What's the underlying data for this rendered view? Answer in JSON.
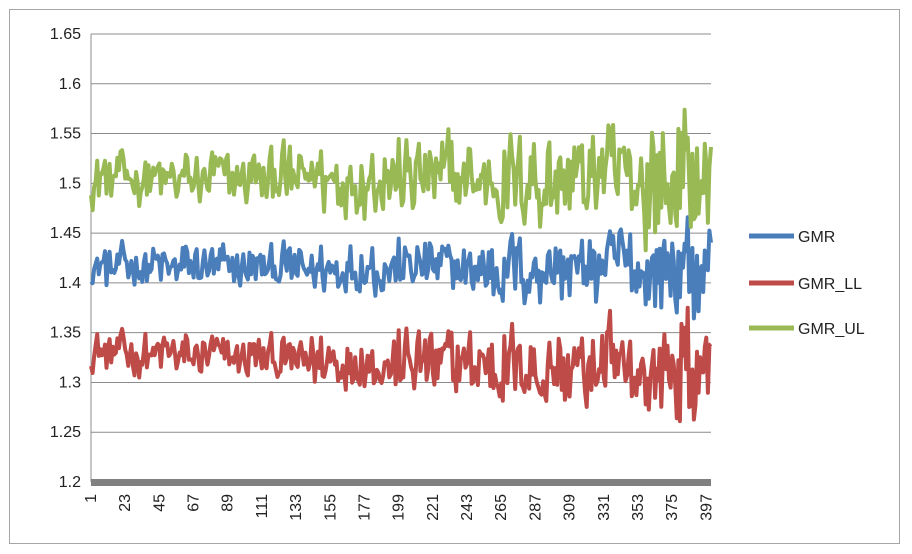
{
  "chart_data": {
    "type": "line",
    "title": "",
    "xlabel": "",
    "ylabel": "",
    "ylim": [
      1.2,
      1.65
    ],
    "yticks": [
      "1.2",
      "1.25",
      "1.3",
      "1.35",
      "1.4",
      "1.45",
      "1.5",
      "1.55",
      "1.6",
      "1.65"
    ],
    "xticks": [
      "1",
      "23",
      "45",
      "67",
      "89",
      "111",
      "133",
      "155",
      "177",
      "199",
      "221",
      "243",
      "265",
      "287",
      "309",
      "331",
      "353",
      "375",
      "397"
    ],
    "x_range": [
      1,
      400
    ],
    "grid": "horizontal",
    "legend_position": "right",
    "colors": {
      "GMR": "#4a7ebb",
      "GMR_LL": "#be4b48",
      "GMR_UL": "#98b954"
    },
    "series": [
      {
        "name": "GMR",
        "base": 1.415,
        "mean_drift": 0.0,
        "amplitude_start": 0.02,
        "amplitude_end": 0.05,
        "min": 1.36,
        "max": 1.47
      },
      {
        "name": "GMR_LL",
        "base": 1.33,
        "mean_drift": -0.02,
        "amplitude_start": 0.02,
        "amplitude_end": 0.06,
        "min": 1.255,
        "max": 1.375
      },
      {
        "name": "GMR_UL",
        "base": 1.505,
        "mean_drift": 0.0,
        "amplitude_start": 0.025,
        "amplitude_end": 0.07,
        "min": 1.42,
        "max": 1.605
      }
    ]
  }
}
